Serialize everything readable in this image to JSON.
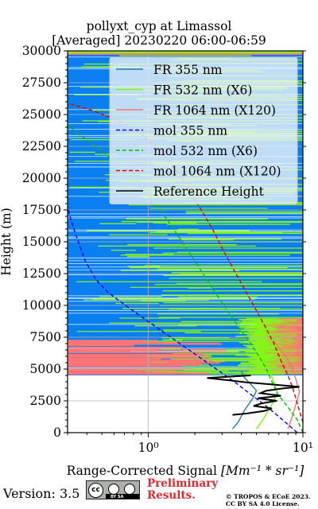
{
  "figure": {
    "title_line1": "pollyxt_cyp at Limassol",
    "title_line2": "[Averaged] 20230220 06:00-06:59"
  },
  "chart_data": {
    "type": "line",
    "xscale": "log",
    "xlim": [
      0.3,
      10
    ],
    "ylim": [
      0,
      30000
    ],
    "ylabel": "Height (m)",
    "xlabel_prefix": "Range-Corrected Signal ",
    "xlabel_units": "[Mm⁻¹ * sr⁻¹]",
    "x_ticks": [
      {
        "value": 1,
        "label": "10⁰"
      },
      {
        "value": 10,
        "label": "10¹"
      }
    ],
    "y_ticks": [
      0,
      2500,
      5000,
      7500,
      10000,
      12500,
      15000,
      17500,
      20000,
      22500,
      25000,
      27500,
      30000
    ],
    "grid": true,
    "legend_placement": "top-right",
    "series": [
      {
        "name": "FR 355 nm",
        "color": "#1f77b4",
        "style": "solid",
        "points": [
          [
            3.5,
            300
          ],
          [
            3.8,
            800
          ],
          [
            4.0,
            1300
          ],
          [
            4.2,
            1800
          ],
          [
            4.5,
            2300
          ],
          [
            4.8,
            2800
          ],
          [
            5.0,
            3300
          ],
          [
            4.6,
            3800
          ],
          [
            4.2,
            4300
          ],
          [
            4.0,
            4800
          ]
        ]
      },
      {
        "name": "FR 532 nm (X6)",
        "color": "#7cfc00",
        "style": "solid",
        "points": [
          [
            5.0,
            300
          ],
          [
            5.5,
            1000
          ],
          [
            6.0,
            1800
          ],
          [
            6.5,
            2500
          ],
          [
            6.8,
            3200
          ],
          [
            6.5,
            3900
          ],
          [
            6.2,
            4600
          ],
          [
            5.8,
            5300
          ],
          [
            5.5,
            6000
          ]
        ]
      },
      {
        "name": "FR 1064 nm (X120)",
        "color": "#ff7070",
        "style": "solid",
        "points": [
          [
            8.0,
            300
          ],
          [
            8.5,
            1200
          ],
          [
            9.0,
            2200
          ],
          [
            9.5,
            3200
          ],
          [
            9.0,
            4200
          ],
          [
            8.5,
            5200
          ],
          [
            7.5,
            6200
          ],
          [
            6.5,
            7200
          ]
        ]
      },
      {
        "name": "mol 355 nm",
        "color": "#0000ff",
        "style": "dashed",
        "points": [
          [
            9.2,
            0
          ],
          [
            7.4,
            1000
          ],
          [
            5.9,
            2000
          ],
          [
            4.6,
            3000
          ],
          [
            3.6,
            4000
          ],
          [
            2.75,
            5000
          ],
          [
            2.1,
            6000
          ],
          [
            1.6,
            7000
          ],
          [
            1.22,
            8000
          ],
          [
            0.93,
            9000
          ],
          [
            0.71,
            10000
          ],
          [
            0.55,
            11000
          ],
          [
            0.46,
            12000
          ],
          [
            0.39,
            13500
          ],
          [
            0.34,
            15500
          ],
          [
            0.31,
            17000
          ],
          [
            0.3,
            17800
          ]
        ]
      },
      {
        "name": "mol 532 nm (X6)",
        "color": "#00c000",
        "style": "dashed",
        "points": [
          [
            10.0,
            0
          ],
          [
            9.2,
            1000
          ],
          [
            8.0,
            2000
          ],
          [
            6.9,
            3000
          ],
          [
            6.3,
            4000
          ],
          [
            5.8,
            5000
          ],
          [
            5.2,
            6000
          ],
          [
            4.6,
            7000
          ],
          [
            4.0,
            8000
          ],
          [
            3.5,
            9000
          ],
          [
            3.1,
            10000
          ],
          [
            2.7,
            11000
          ],
          [
            2.4,
            12000
          ],
          [
            2.0,
            13500
          ],
          [
            1.55,
            15500
          ],
          [
            1.2,
            17500
          ],
          [
            0.9,
            19500
          ],
          [
            0.65,
            21000
          ],
          [
            0.46,
            22500
          ],
          [
            0.35,
            23500
          ],
          [
            0.3,
            24200
          ]
        ]
      },
      {
        "name": "mol 1064 nm (X120)",
        "color": "#e00000",
        "style": "dashed",
        "points": [
          [
            10.0,
            800
          ],
          [
            9.6,
            1500
          ],
          [
            9.1,
            2500
          ],
          [
            8.6,
            3500
          ],
          [
            8.0,
            4500
          ],
          [
            7.3,
            5500
          ],
          [
            6.5,
            7000
          ],
          [
            5.6,
            8500
          ],
          [
            4.8,
            10000
          ],
          [
            4.1,
            11500
          ],
          [
            3.5,
            13000
          ],
          [
            3.0,
            14500
          ],
          [
            2.6,
            16000
          ],
          [
            2.2,
            17500
          ],
          [
            1.85,
            19000
          ],
          [
            1.55,
            20500
          ],
          [
            1.22,
            22000
          ],
          [
            0.9,
            23500
          ],
          [
            0.64,
            24500
          ],
          [
            0.44,
            25300
          ],
          [
            0.3,
            25900
          ]
        ]
      },
      {
        "name": "Reference Height",
        "color": "#000000",
        "style": "solid",
        "points": [
          [
            3.5,
            1400
          ],
          [
            4.3,
            1500
          ],
          [
            5.6,
            1700
          ],
          [
            6.3,
            1900
          ],
          [
            4.8,
            2100
          ],
          [
            5.4,
            2300
          ],
          [
            6.8,
            2500
          ],
          [
            5.1,
            2700
          ],
          [
            7.2,
            2900
          ],
          [
            5.3,
            3100
          ],
          [
            5.8,
            3300
          ],
          [
            7.7,
            3500
          ],
          [
            9.5,
            3600
          ],
          [
            6.2,
            3800
          ],
          [
            4.3,
            3950
          ],
          [
            3.4,
            4100
          ],
          [
            2.4,
            4300
          ],
          [
            4.6,
            4500
          ]
        ]
      }
    ]
  },
  "footer": {
    "version": "Version: 3.5",
    "badge_text": "BY   SA",
    "prelim_line1": "Preliminary",
    "prelim_line2": "Results.",
    "copyright_line1": "© TROPOS & ECoE 2023.",
    "copyright_line2": "CC BY SA 4.0 License."
  }
}
